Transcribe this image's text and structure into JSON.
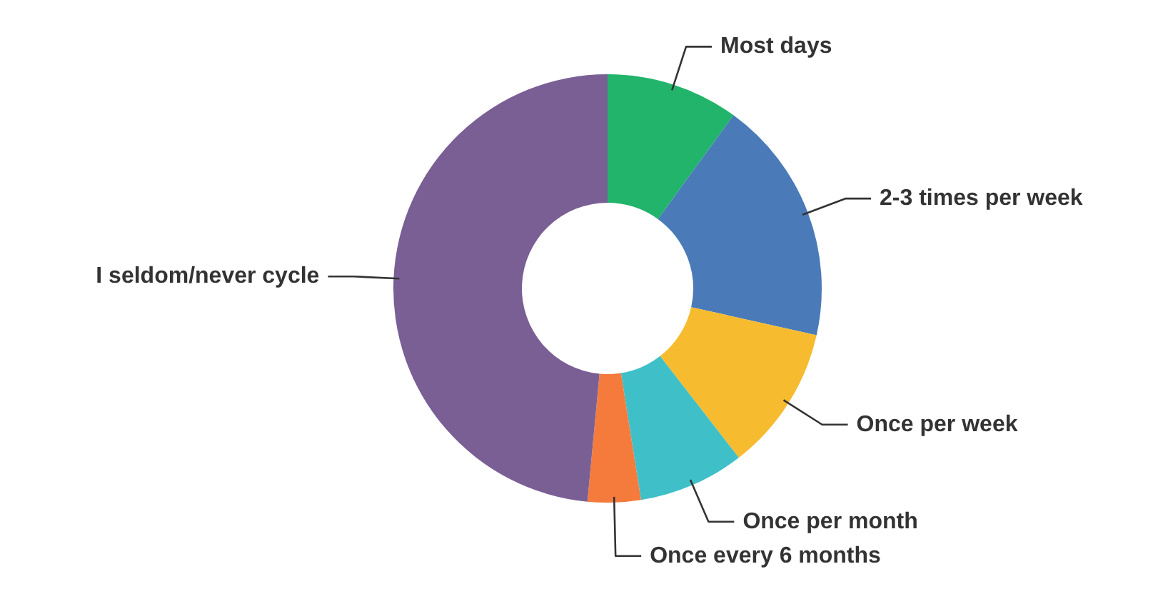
{
  "chart_data": {
    "type": "donut",
    "categories": [
      "Most days",
      "2-3 times per week",
      "Once per week",
      "Once per month",
      "Once every 6 months",
      "I seldom/never cycle"
    ],
    "values": [
      10,
      18.5,
      11,
      8,
      4,
      48.5
    ],
    "colors": [
      "#21b46a",
      "#4a7bb8",
      "#f6bb2f",
      "#3fc0c8",
      "#f47b3c",
      "#7a5f95"
    ],
    "legend": false
  }
}
